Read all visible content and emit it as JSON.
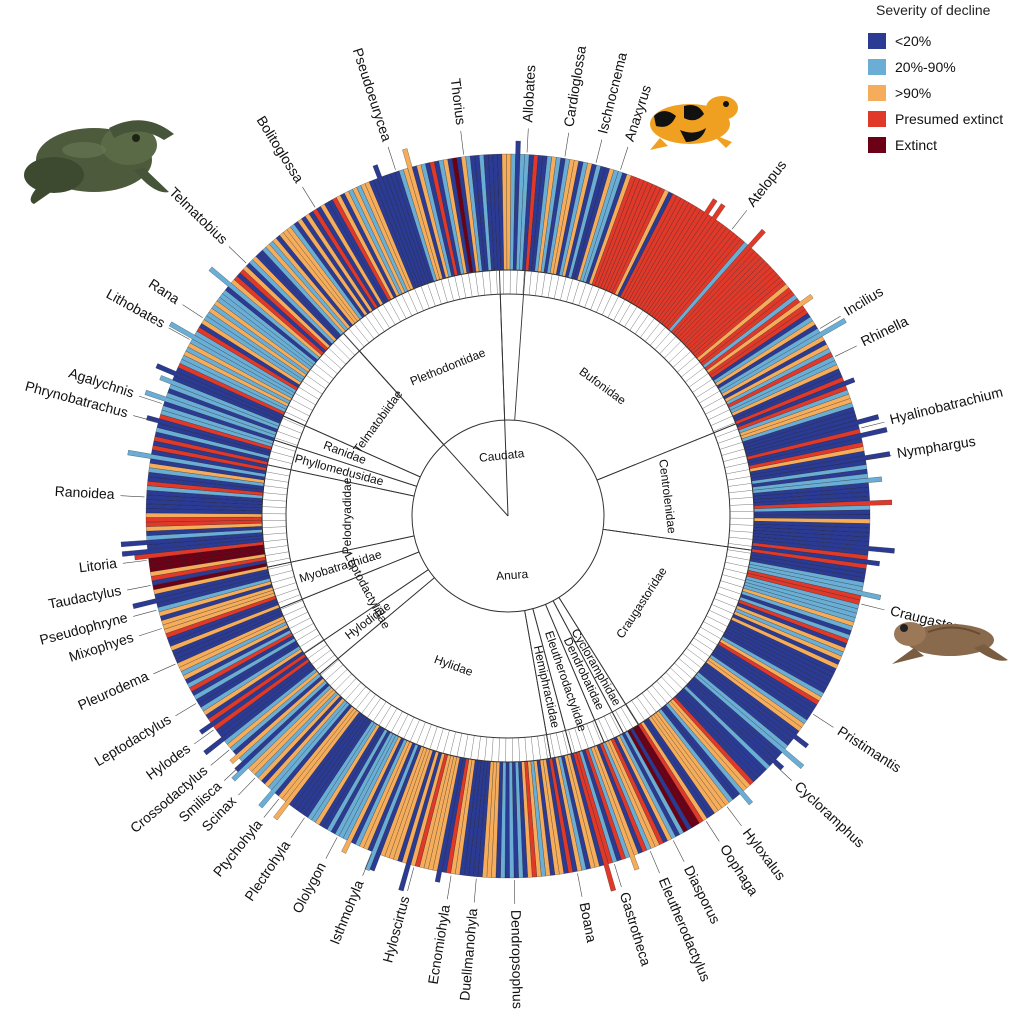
{
  "chart_data": {
    "type": "radial-bar",
    "categories": [
      "<20%",
      "20%-90%",
      ">90%",
      "Presumed extinct",
      "Extinct"
    ],
    "colors": {
      "<20%": "#2b3a93",
      "20%-90%": "#6aaed6",
      "90plus": "#f5ad5c",
      "presumed_extinct": "#e0392a",
      "extinct": "#6b0016"
    },
    "legend": {
      "title": "Severity of decline",
      "position": "top-right",
      "items": [
        {
          "label": "<20%",
          "color": "#2b3a93"
        },
        {
          "label": "20%-90%",
          "color": "#6aaed6"
        },
        {
          "label": ">90%",
          "color": "#f5ad5c"
        },
        {
          "label": "Presumed extinct",
          "color": "#e0392a"
        },
        {
          "label": "Extinct",
          "color": "#6b0016"
        }
      ]
    },
    "orders": [
      {
        "name": "Caudata",
        "angle": -6
      },
      {
        "name": "Anura",
        "angle": 176
      }
    ],
    "families": [
      {
        "name": "Plethodontidae",
        "start": -42,
        "end": -2
      },
      {
        "name": "Bufonidae",
        "start": 4,
        "end": 68
      },
      {
        "name": "Centrolenidae",
        "start": 68,
        "end": 98
      },
      {
        "name": "Craugastoridae",
        "start": 98,
        "end": 148
      },
      {
        "name": "Cycloramphidae",
        "start": 148,
        "end": 152
      },
      {
        "name": "Dendrobatidae",
        "start": 152,
        "end": 157
      },
      {
        "name": "Eleutherodactylidae",
        "start": 157,
        "end": 165
      },
      {
        "name": "Hemiphractidae",
        "start": 165,
        "end": 170
      },
      {
        "name": "Hylidae",
        "start": 170,
        "end": 230
      },
      {
        "name": "Hylodidae",
        "start": 230,
        "end": 236
      },
      {
        "name": "Leptodactylidae",
        "start": 236,
        "end": 248
      },
      {
        "name": "Myobatrachidae",
        "start": 248,
        "end": 258
      },
      {
        "name": "Pelodryadidae",
        "start": 258,
        "end": 282
      },
      {
        "name": "Phyllomedusidae",
        "start": 282,
        "end": 288
      },
      {
        "name": "Ranidae",
        "start": 288,
        "end": 294
      },
      {
        "name": "Telmatobiidae",
        "start": 294,
        "end": 318
      }
    ],
    "genera": [
      {
        "name": "Thorius",
        "angle": -7
      },
      {
        "name": "Pseudoeurycea",
        "angle": -18
      },
      {
        "name": "Bolitoglossa",
        "angle": -32
      },
      {
        "name": "Allobates",
        "angle": 3
      },
      {
        "name": "Cardioglossa",
        "angle": 9
      },
      {
        "name": "Ischnocnema",
        "angle": 14
      },
      {
        "name": "Anaxyrus",
        "angle": 18
      },
      {
        "name": "Atelopus",
        "angle": 38
      },
      {
        "name": "Incilius",
        "angle": 59
      },
      {
        "name": "Rhinella",
        "angle": 64
      },
      {
        "name": "Hyalinobatrachium",
        "angle": 76
      },
      {
        "name": "Nymphargus",
        "angle": 81
      },
      {
        "name": "Craugastor",
        "angle": 104
      },
      {
        "name": "Pristimantis",
        "angle": 123
      },
      {
        "name": "Cycloramphus",
        "angle": 133
      },
      {
        "name": "Hyloxalus",
        "angle": 143
      },
      {
        "name": "Oophaga",
        "angle": 147
      },
      {
        "name": "Diasporus",
        "angle": 153
      },
      {
        "name": "Eleutherodactylus",
        "angle": 157
      },
      {
        "name": "Gastrotheca",
        "angle": 163
      },
      {
        "name": "Boana",
        "angle": 169
      },
      {
        "name": "Dendropsophus",
        "angle": 179
      },
      {
        "name": "Duellmanohyla",
        "angle": 185
      },
      {
        "name": "Ecnomiohyla",
        "angle": 189
      },
      {
        "name": "Hyloscirtus",
        "angle": 195
      },
      {
        "name": "Isthmohyla",
        "angle": 202
      },
      {
        "name": "Ololygon",
        "angle": 208
      },
      {
        "name": "Plectrohyla",
        "angle": 214
      },
      {
        "name": "Ptychohyla",
        "angle": 219
      },
      {
        "name": "Scinax",
        "angle": 224
      },
      {
        "name": "Smilisca",
        "angle": 227
      },
      {
        "name": "Crossodactylus",
        "angle": 230
      },
      {
        "name": "Hylodes",
        "angle": 234
      },
      {
        "name": "Leptodactylus",
        "angle": 239
      },
      {
        "name": "Pleurodema",
        "angle": 246
      },
      {
        "name": "Mixophyes",
        "angle": 252
      },
      {
        "name": "Pseudophryne",
        "angle": 255
      },
      {
        "name": "Taudactylus",
        "angle": 259
      },
      {
        "name": "Litoria",
        "angle": 263
      },
      {
        "name": "Ranoidea",
        "angle": 273
      },
      {
        "name": "Phrynobatrachus",
        "angle": 285
      },
      {
        "name": "Agalychnis",
        "angle": 288
      },
      {
        "name": "Lithobates",
        "angle": 299
      },
      {
        "name": "Rana",
        "angle": 303
      },
      {
        "name": "Telmatobius",
        "angle": 314
      }
    ],
    "species_count": 500,
    "segments": [
      {
        "start": -42,
        "end": -2,
        "mix": [
          0.45,
          0.2,
          0.25,
          0.08,
          0.02
        ]
      },
      {
        "start": -2,
        "end": 4,
        "mix": [
          0.5,
          0.2,
          0.2,
          0.1,
          0.0
        ]
      },
      {
        "start": 4,
        "end": 20,
        "mix": [
          0.35,
          0.25,
          0.3,
          0.1,
          0.0
        ]
      },
      {
        "start": 20,
        "end": 56,
        "mix": [
          0.05,
          0.05,
          0.1,
          0.8,
          0.0
        ]
      },
      {
        "start": 56,
        "end": 68,
        "mix": [
          0.35,
          0.25,
          0.25,
          0.15,
          0.0
        ]
      },
      {
        "start": 68,
        "end": 98,
        "mix": [
          0.5,
          0.25,
          0.15,
          0.1,
          0.0
        ]
      },
      {
        "start": 98,
        "end": 148,
        "mix": [
          0.45,
          0.15,
          0.25,
          0.15,
          0.0
        ]
      },
      {
        "start": 148,
        "end": 158,
        "mix": [
          0.25,
          0.1,
          0.2,
          0.25,
          0.2
        ]
      },
      {
        "start": 158,
        "end": 170,
        "mix": [
          0.4,
          0.25,
          0.2,
          0.15,
          0.0
        ]
      },
      {
        "start": 170,
        "end": 230,
        "mix": [
          0.45,
          0.15,
          0.3,
          0.1,
          0.0
        ]
      },
      {
        "start": 230,
        "end": 258,
        "mix": [
          0.4,
          0.2,
          0.25,
          0.15,
          0.0
        ]
      },
      {
        "start": 258,
        "end": 264,
        "mix": [
          0.05,
          0.05,
          0.05,
          0.2,
          0.65
        ]
      },
      {
        "start": 264,
        "end": 294,
        "mix": [
          0.55,
          0.2,
          0.15,
          0.1,
          0.0
        ]
      },
      {
        "start": 294,
        "end": 318,
        "mix": [
          0.25,
          0.35,
          0.2,
          0.2,
          0.0
        ]
      }
    ]
  }
}
